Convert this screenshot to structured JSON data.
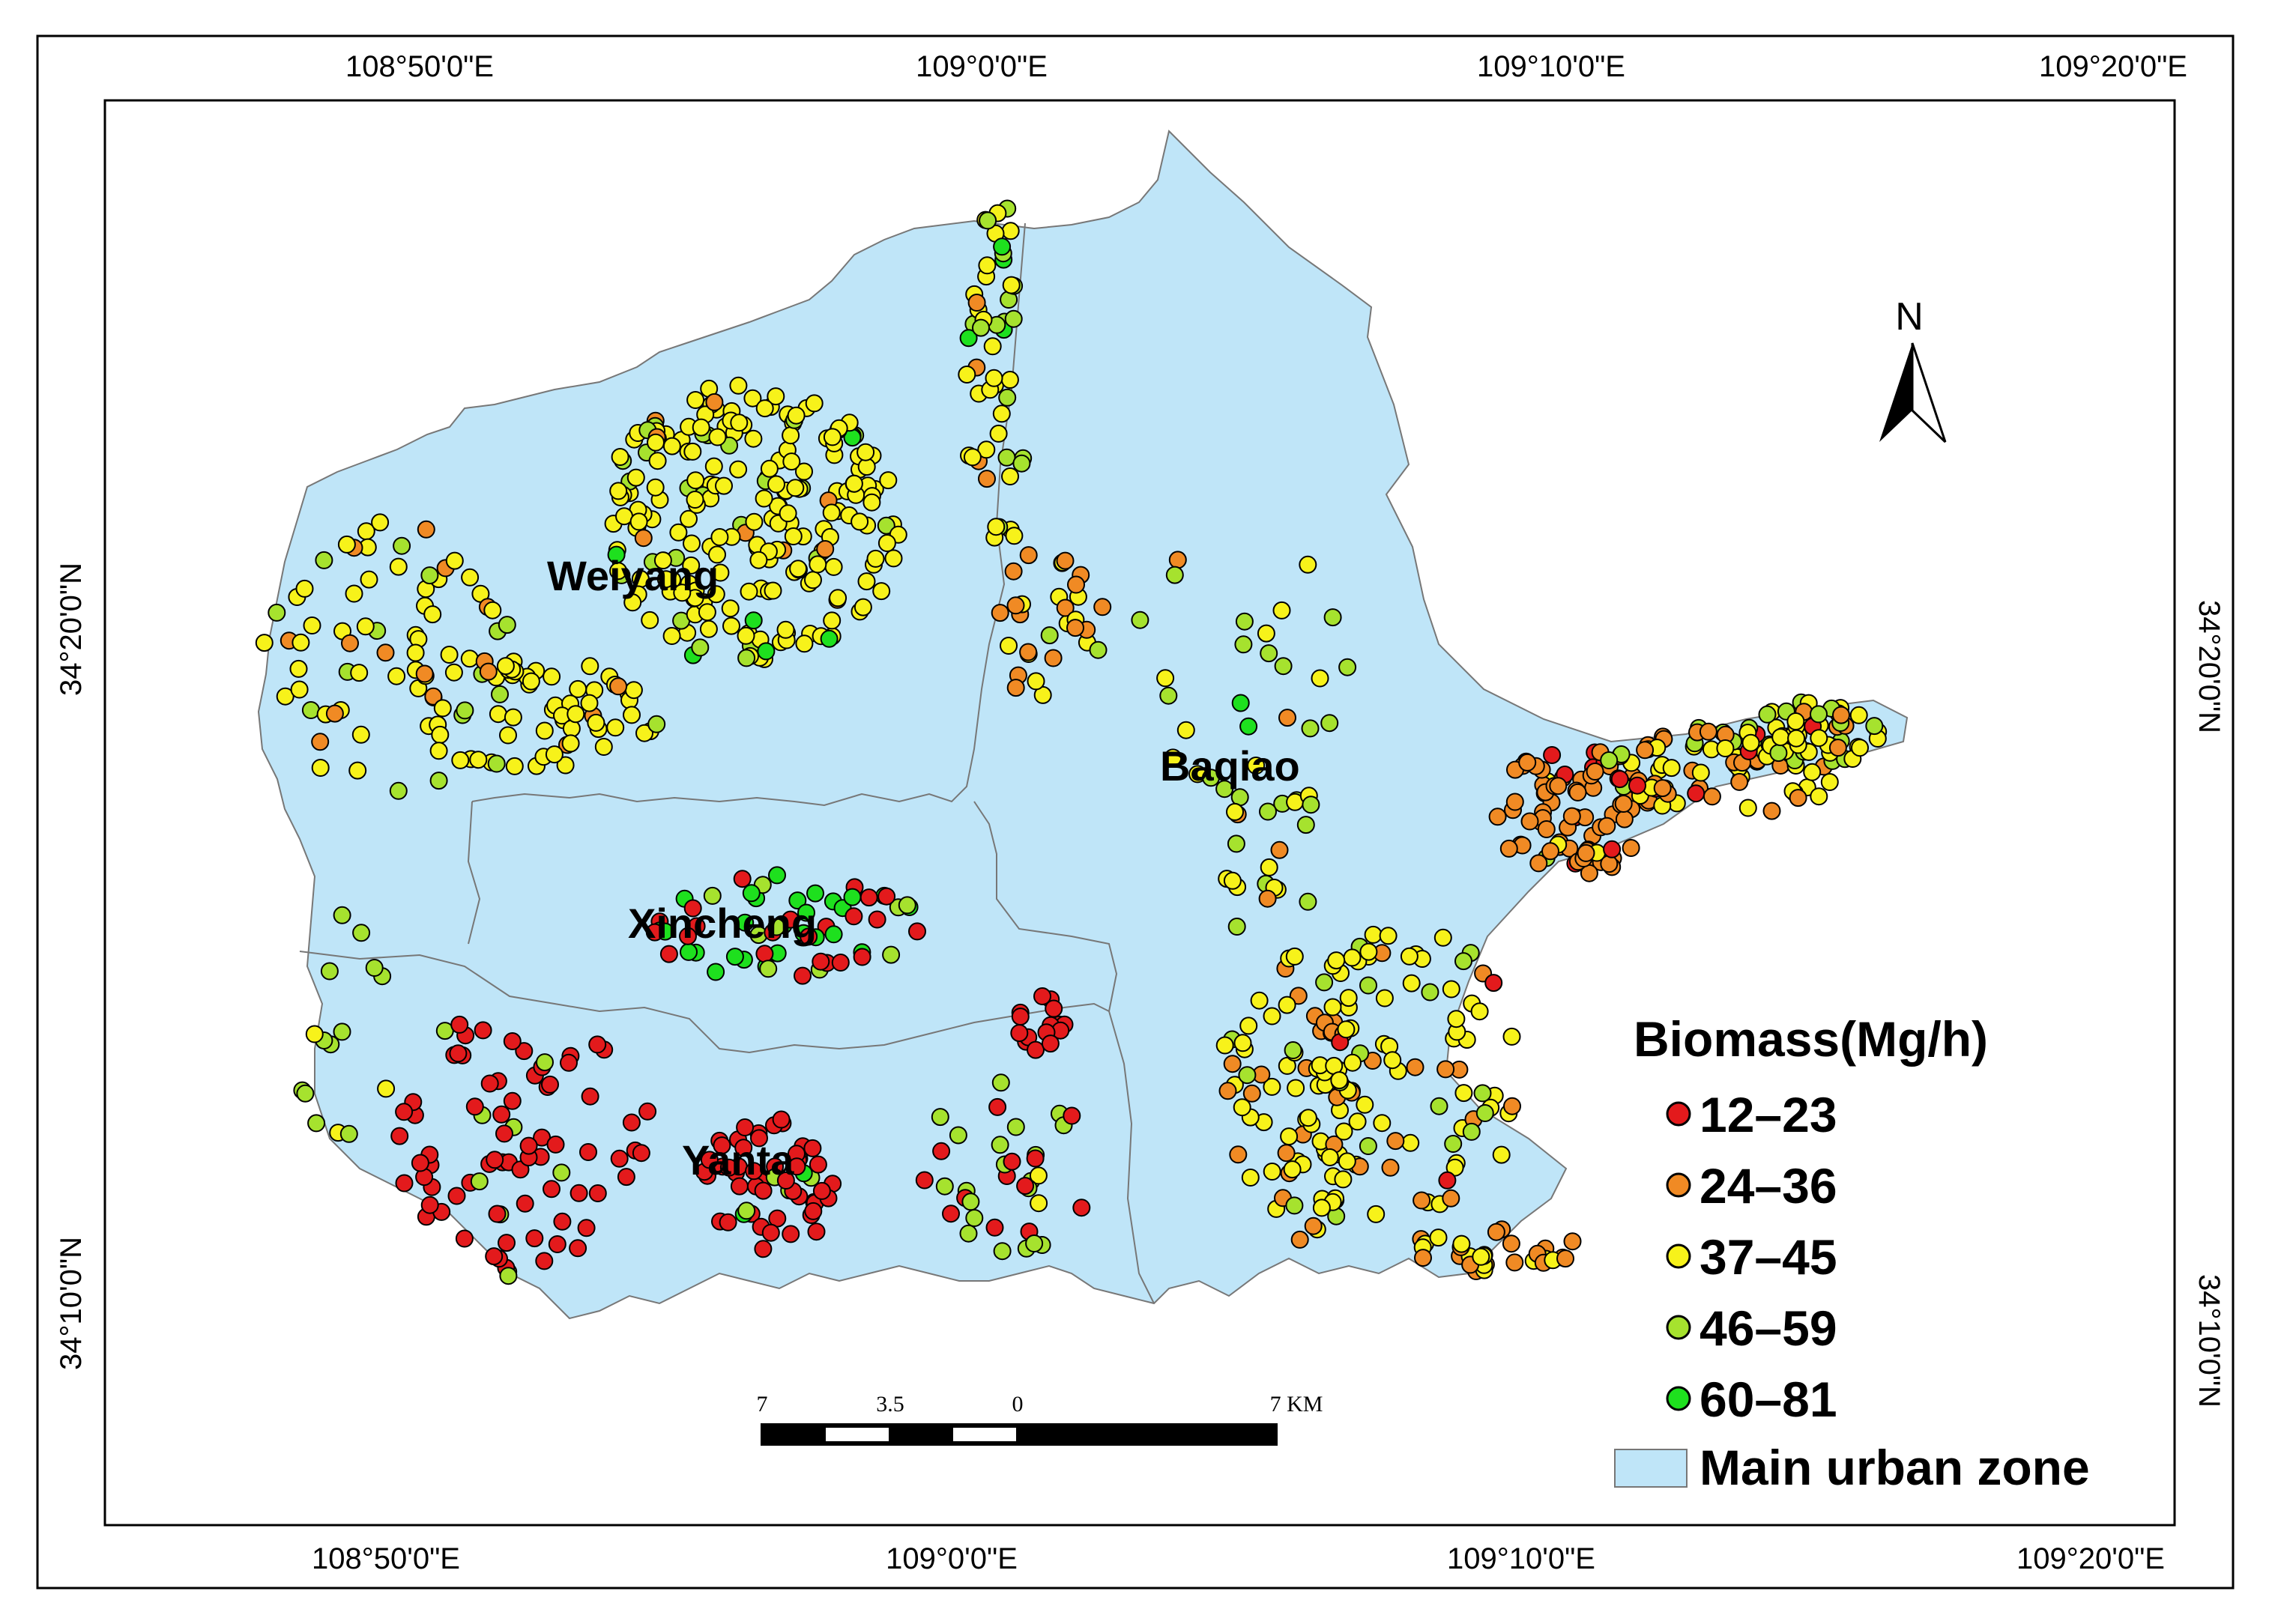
{
  "map": {
    "top_ticks": [
      "108°50'0\"E",
      "109°0'0\"E",
      "109°10'0\"E",
      "109°20'0\"E"
    ],
    "bottom_ticks": [
      "108°50'0\"E",
      "109°0'0\"E",
      "109°10'0\"E",
      "109°20'0\"E"
    ],
    "left_ticks": [
      "34°20'0\"N",
      "34°10'0\"N"
    ],
    "right_ticks": [
      "34°20'0\"N",
      "34°10'0\"N"
    ],
    "districts": [
      "Weiyang",
      "Baqiao",
      "Xincheng",
      "Yanta"
    ],
    "north_label": "N",
    "scale_labels": [
      "7",
      "3.5",
      "0",
      "7 KM"
    ],
    "zone_color": "#bfe5f8"
  },
  "legend": {
    "title": "Biomass(Mg/h)",
    "classes": [
      {
        "label": "12–23",
        "color": "#e31a1c"
      },
      {
        "label": "24–36",
        "color": "#f08a24"
      },
      {
        "label": "37–45",
        "color": "#f7f21a"
      },
      {
        "label": "46–59",
        "color": "#a6e22e"
      },
      {
        "label": "60–81",
        "color": "#1ee01e"
      }
    ],
    "zone_label": "Main urban zone"
  }
}
